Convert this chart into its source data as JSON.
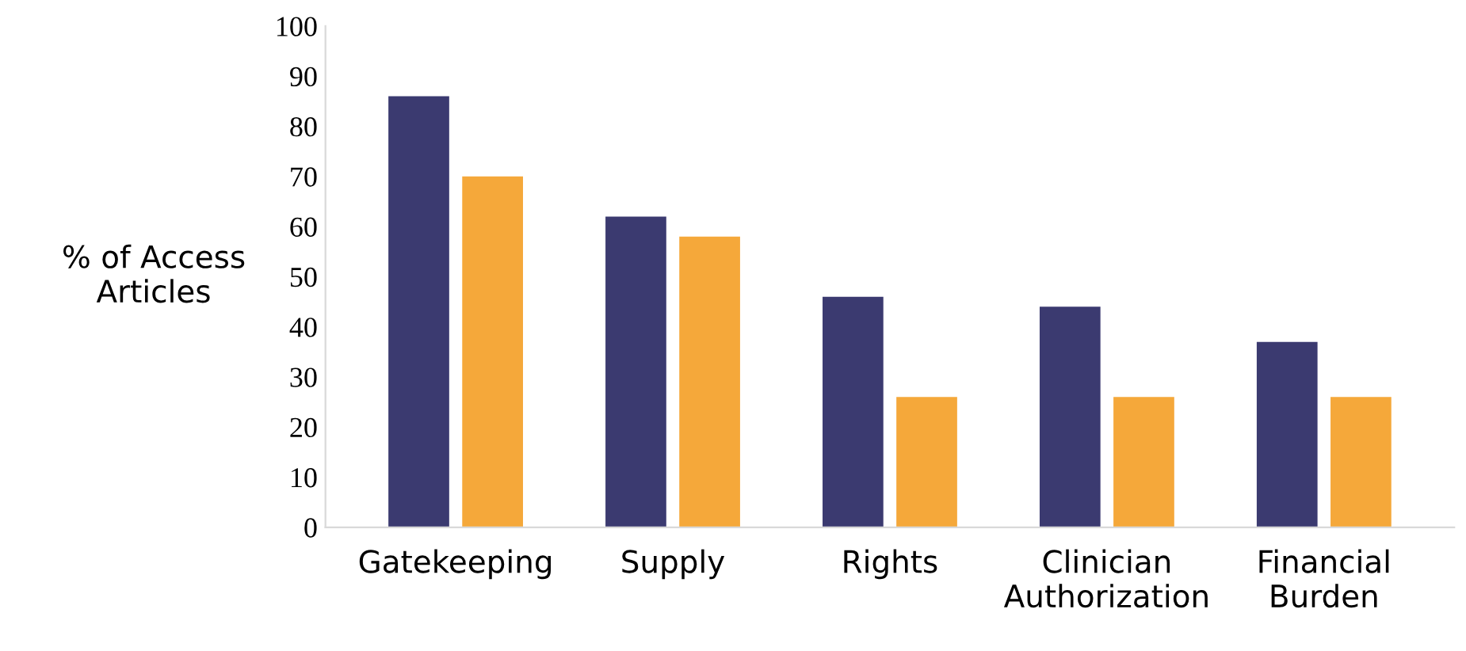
{
  "chart_data": {
    "type": "bar",
    "categories": [
      "Gatekeeping",
      "Supply",
      "Rights",
      "Clinician\nAuthorization",
      "Financial\nBurden"
    ],
    "series": [
      {
        "color": "#3b3a70",
        "values": [
          86,
          62,
          46,
          44,
          37
        ]
      },
      {
        "color": "#f5a83a",
        "values": [
          70,
          58,
          26,
          26,
          26
        ]
      }
    ],
    "ylabel": "% of Access\nArticles",
    "ylim": [
      0,
      100
    ],
    "yticks": [
      0,
      10,
      20,
      30,
      40,
      50,
      60,
      70,
      80,
      90,
      100
    ],
    "grid": false,
    "legend": false
  }
}
